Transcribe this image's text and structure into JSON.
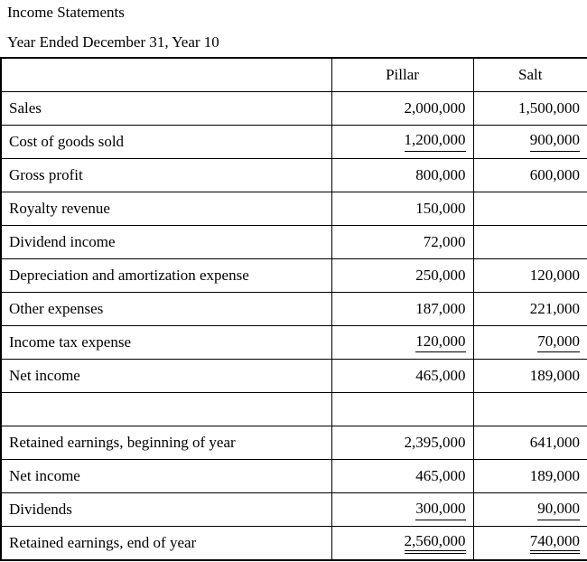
{
  "doc": {
    "title": "Income Statements",
    "subtitle": "Year Ended December 31, Year 10"
  },
  "table": {
    "columns": {
      "label": "",
      "pillar": "Pillar",
      "salt": "Salt"
    },
    "rows": [
      {
        "label": "Sales",
        "pillar": "2,000,000",
        "salt": "1,500,000",
        "underline": "none"
      },
      {
        "label": "Cost of goods sold",
        "pillar": "1,200,000",
        "salt": "900,000",
        "underline": "single"
      },
      {
        "label": "Gross profit",
        "pillar": "800,000",
        "salt": "600,000",
        "underline": "none"
      },
      {
        "label": "Royalty revenue",
        "pillar": "150,000",
        "salt": "",
        "underline": "none"
      },
      {
        "label": "Dividend income",
        "pillar": "72,000",
        "salt": "",
        "underline": "none"
      },
      {
        "label": "Depreciation and amortization expense",
        "pillar": "250,000",
        "salt": "120,000",
        "underline": "none"
      },
      {
        "label": "Other expenses",
        "pillar": "187,000",
        "salt": "221,000",
        "underline": "none"
      },
      {
        "label": "Income tax expense",
        "pillar": "120,000",
        "salt": "70,000",
        "underline": "single"
      },
      {
        "label": "Net income",
        "pillar": "465,000",
        "salt": "189,000",
        "underline": "none"
      },
      {
        "label": "",
        "pillar": "",
        "salt": "",
        "underline": "none"
      },
      {
        "label": "Retained earnings, beginning of year",
        "pillar": "2,395,000",
        "salt": "641,000",
        "underline": "none"
      },
      {
        "label": "Net income",
        "pillar": "465,000",
        "salt": "189,000",
        "underline": "none"
      },
      {
        "label": "Dividends",
        "pillar": "300,000",
        "salt": "90,000",
        "underline": "single"
      },
      {
        "label": "Retained earnings, end of year",
        "pillar": "2,560,000",
        "salt": "740,000",
        "underline": "double"
      }
    ],
    "colors": {
      "border": "#000000",
      "text": "#000000",
      "background": "#ffffff"
    }
  }
}
